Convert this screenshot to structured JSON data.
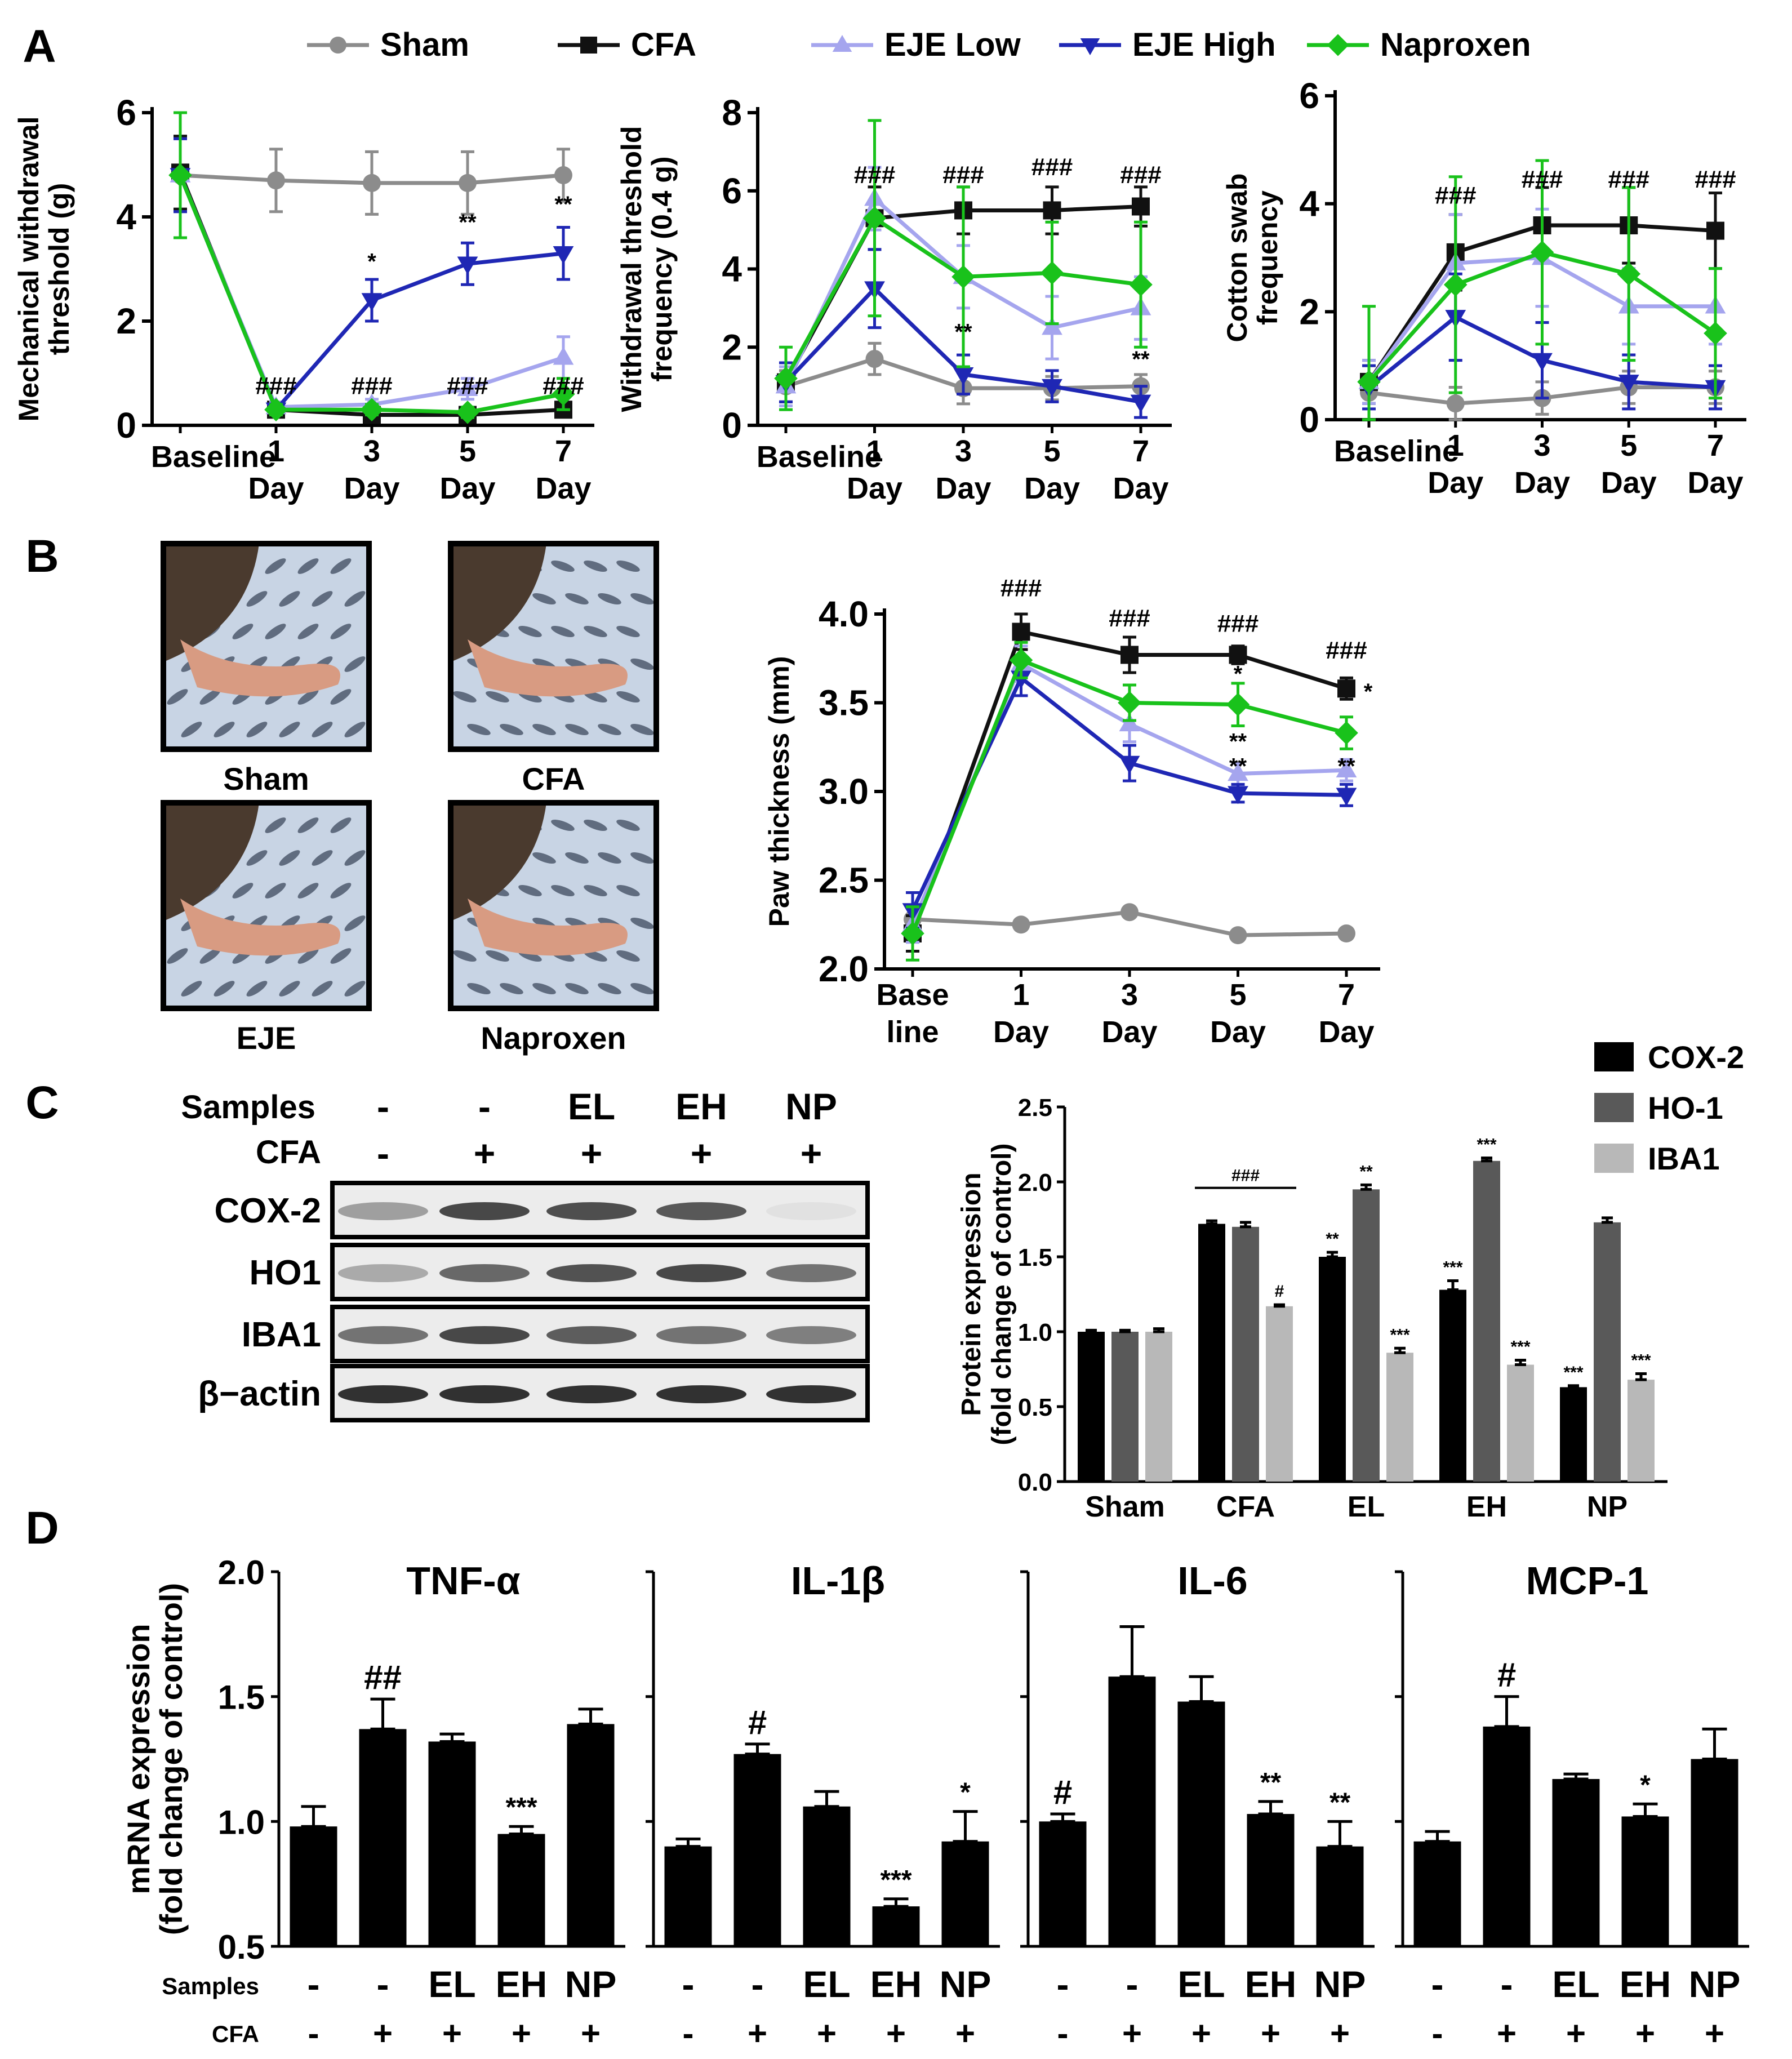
{
  "figure": {
    "panel_labels": [
      "A",
      "B",
      "C",
      "D"
    ],
    "legend_entries": [
      {
        "name": "Sham",
        "color": "#8c8c8c",
        "marker": "circle"
      },
      {
        "name": "CFA",
        "color": "#111111",
        "marker": "square"
      },
      {
        "name": "EJE Low",
        "color": "#a5a5ee",
        "marker": "triangle-up"
      },
      {
        "name": "EJE High",
        "color": "#1f27b4",
        "marker": "triangle-down"
      },
      {
        "name": "Naproxen",
        "color": "#19c21b",
        "marker": "diamond"
      }
    ],
    "photos": {
      "captions": [
        "Sham",
        "CFA",
        "EJE",
        "Naproxen"
      ],
      "colors": {
        "fur": "#4a3a2e",
        "paw": "#d89b82",
        "mat": "#c8d4e4",
        "spot": "#3d4a5e"
      }
    },
    "western_blot": {
      "row_labels": [
        "Samples",
        "CFA"
      ],
      "samples": [
        "-",
        "-",
        "EL",
        "EH",
        "NP"
      ],
      "cfa": [
        "-",
        "+",
        "+",
        "+",
        "+"
      ],
      "bands": [
        "COX-2",
        "HO1",
        "IBA1",
        "β−actin"
      ],
      "band_intensity": [
        [
          0.35,
          0.75,
          0.72,
          0.68,
          0.05
        ],
        [
          0.3,
          0.6,
          0.7,
          0.75,
          0.55
        ],
        [
          0.55,
          0.75,
          0.65,
          0.55,
          0.5
        ],
        [
          0.85,
          0.85,
          0.85,
          0.85,
          0.85
        ]
      ]
    }
  },
  "chart_data": [
    {
      "id": "mechanical",
      "type": "line",
      "ylabel_lines": [
        "Mechanical withdrawal",
        "threshold (g)"
      ],
      "xticks": [
        [
          "Baseline"
        ],
        [
          "1",
          "Day"
        ],
        [
          "3",
          "Day"
        ],
        [
          "5",
          "Day"
        ],
        [
          "7",
          "Day"
        ]
      ],
      "ylim": [
        0,
        6
      ],
      "yticks": [
        0,
        2,
        4,
        6
      ],
      "series": [
        {
          "name": "Sham",
          "values": [
            4.8,
            4.7,
            4.65,
            4.65,
            4.8
          ],
          "err": [
            0.7,
            0.6,
            0.6,
            0.6,
            0.5
          ]
        },
        {
          "name": "CFA",
          "values": [
            4.85,
            0.3,
            0.2,
            0.2,
            0.3
          ],
          "err": [
            0.7,
            0.1,
            0.1,
            0.1,
            0.1
          ]
        },
        {
          "name": "EJE Low",
          "values": [
            4.8,
            0.35,
            0.4,
            0.7,
            1.3
          ],
          "err": [
            0.7,
            0.1,
            0.1,
            0.2,
            0.4
          ]
        },
        {
          "name": "EJE High",
          "values": [
            4.8,
            0.3,
            2.4,
            3.1,
            3.3
          ],
          "err": [
            0.7,
            0.1,
            0.4,
            0.4,
            0.5
          ]
        },
        {
          "name": "Naproxen",
          "values": [
            4.8,
            0.3,
            0.3,
            0.25,
            0.6
          ],
          "err": [
            1.2,
            0.1,
            0.1,
            0.1,
            0.3
          ]
        }
      ],
      "annotations": [
        {
          "x": 1,
          "y": 0.6,
          "text": "###"
        },
        {
          "x": 2,
          "y": 0.6,
          "text": "###"
        },
        {
          "x": 3,
          "y": 0.6,
          "text": "###"
        },
        {
          "x": 4,
          "y": 0.6,
          "text": "###"
        },
        {
          "x": 2,
          "y": 3.0,
          "text": "*"
        },
        {
          "x": 3,
          "y": 3.75,
          "text": "**"
        },
        {
          "x": 4,
          "y": 4.1,
          "text": "**"
        }
      ]
    },
    {
      "id": "withdrawal",
      "type": "line",
      "ylabel_lines": [
        "Withdrawal threshold",
        "frequency (0.4 g)"
      ],
      "xticks": [
        [
          "Baseline"
        ],
        [
          "1",
          "Day"
        ],
        [
          "3",
          "Day"
        ],
        [
          "5",
          "Day"
        ],
        [
          "7",
          "Day"
        ]
      ],
      "ylim": [
        0,
        8
      ],
      "yticks": [
        0,
        2,
        4,
        6,
        8
      ],
      "series": [
        {
          "name": "Sham",
          "values": [
            1.0,
            1.7,
            0.95,
            0.95,
            1.0
          ],
          "err": [
            0.4,
            0.4,
            0.4,
            0.3,
            0.3
          ]
        },
        {
          "name": "CFA",
          "values": [
            1.1,
            5.3,
            5.5,
            5.5,
            5.6
          ],
          "err": [
            0.5,
            0.8,
            0.6,
            0.6,
            0.5
          ]
        },
        {
          "name": "EJE Low",
          "values": [
            1.0,
            5.8,
            3.8,
            2.5,
            3.0
          ],
          "err": [
            0.5,
            0.8,
            0.8,
            0.8,
            0.8
          ]
        },
        {
          "name": "EJE High",
          "values": [
            1.1,
            3.5,
            1.3,
            1.0,
            0.6
          ],
          "err": [
            0.5,
            1.0,
            0.5,
            0.4,
            0.4
          ]
        },
        {
          "name": "Naproxen",
          "values": [
            1.2,
            5.3,
            3.8,
            3.9,
            3.6
          ],
          "err": [
            0.8,
            2.5,
            2.3,
            1.3,
            1.6
          ]
        }
      ],
      "annotations": [
        {
          "x": 1,
          "y": 6.2,
          "text": "###"
        },
        {
          "x": 2,
          "y": 6.2,
          "text": "###"
        },
        {
          "x": 3,
          "y": 6.4,
          "text": "###"
        },
        {
          "x": 4,
          "y": 6.2,
          "text": "###"
        },
        {
          "x": 2,
          "y": 2.2,
          "text": "**"
        },
        {
          "x": 4,
          "y": 1.5,
          "text": "**"
        }
      ]
    },
    {
      "id": "cotton",
      "type": "line",
      "ylabel_lines": [
        "Cotton swab",
        "frequency"
      ],
      "xticks": [
        [
          "Baseline"
        ],
        [
          "1",
          "Day"
        ],
        [
          "3",
          "Day"
        ],
        [
          "5",
          "Day"
        ],
        [
          "7",
          "Day"
        ]
      ],
      "ylim": [
        0,
        6
      ],
      "yticks": [
        0,
        2,
        4,
        6
      ],
      "series": [
        {
          "name": "Sham",
          "values": [
            0.5,
            0.3,
            0.4,
            0.6,
            0.6
          ],
          "err": [
            0.5,
            0.3,
            0.3,
            0.3,
            0.3
          ]
        },
        {
          "name": "CFA",
          "values": [
            0.7,
            3.1,
            3.6,
            3.6,
            3.5
          ],
          "err": [
            0.4,
            0.7,
            0.7,
            0.7,
            0.7
          ]
        },
        {
          "name": "EJE Low",
          "values": [
            0.7,
            2.9,
            3.0,
            2.1,
            2.1
          ],
          "err": [
            0.4,
            0.9,
            0.9,
            0.7,
            0.7
          ]
        },
        {
          "name": "EJE High",
          "values": [
            0.6,
            1.9,
            1.1,
            0.7,
            0.6
          ],
          "err": [
            0.4,
            0.8,
            0.7,
            0.5,
            0.4
          ]
        },
        {
          "name": "Naproxen",
          "values": [
            0.7,
            2.5,
            3.1,
            2.7,
            1.6
          ],
          "err": [
            1.4,
            2.0,
            1.7,
            1.6,
            1.2
          ]
        }
      ],
      "annotations": [
        {
          "x": 1,
          "y": 4.0,
          "text": "###"
        },
        {
          "x": 2,
          "y": 4.3,
          "text": "###"
        },
        {
          "x": 3,
          "y": 4.3,
          "text": "###"
        },
        {
          "x": 4,
          "y": 4.3,
          "text": "###"
        }
      ]
    },
    {
      "id": "paw",
      "type": "line",
      "ylabel_lines": [
        "Paw thickness (mm)"
      ],
      "xticks": [
        [
          "Base",
          "line"
        ],
        [
          "1",
          "Day"
        ],
        [
          "3",
          "Day"
        ],
        [
          "5",
          "Day"
        ],
        [
          "7",
          "Day"
        ]
      ],
      "ylim": [
        2.0,
        4.0
      ],
      "yticks": [
        2.0,
        2.5,
        3.0,
        3.5,
        4.0
      ],
      "series": [
        {
          "name": "Sham",
          "values": [
            2.28,
            2.25,
            2.32,
            2.19,
            2.2
          ],
          "err": [
            0.02,
            0.02,
            0.02,
            0.02,
            0.02
          ]
        },
        {
          "name": "CFA",
          "values": [
            2.2,
            3.9,
            3.77,
            3.77,
            3.58
          ],
          "err": [
            0.1,
            0.1,
            0.1,
            0.05,
            0.06
          ]
        },
        {
          "name": "EJE Low",
          "values": [
            2.25,
            3.72,
            3.38,
            3.1,
            3.12
          ],
          "err": [
            0.1,
            0.1,
            0.1,
            0.06,
            0.06
          ]
        },
        {
          "name": "EJE High",
          "values": [
            2.33,
            3.64,
            3.16,
            2.99,
            2.98
          ],
          "err": [
            0.1,
            0.1,
            0.1,
            0.05,
            0.06
          ]
        },
        {
          "name": "Naproxen",
          "values": [
            2.2,
            3.74,
            3.5,
            3.49,
            3.33
          ],
          "err": [
            0.15,
            0.1,
            0.1,
            0.12,
            0.09
          ]
        }
      ],
      "annotations": [
        {
          "x": 1,
          "y": 4.1,
          "text": "###"
        },
        {
          "x": 2,
          "y": 3.93,
          "text": "###"
        },
        {
          "x": 3,
          "y": 3.9,
          "text": "###"
        },
        {
          "x": 4,
          "y": 3.75,
          "text": "###"
        },
        {
          "x": 3,
          "y": 3.62,
          "text": "*"
        },
        {
          "x": 4.2,
          "y": 3.52,
          "text": "*"
        },
        {
          "x": 3,
          "y": 3.24,
          "text": "**"
        },
        {
          "x": 3,
          "y": 3.1,
          "text": "**"
        },
        {
          "x": 4,
          "y": 3.1,
          "text": "**"
        }
      ]
    },
    {
      "id": "protein",
      "type": "bar",
      "ylabel_lines": [
        "Protein expression",
        "(fold change of control)"
      ],
      "categories": [
        "Sham",
        "CFA",
        "EL",
        "EH",
        "NP"
      ],
      "ylim": [
        0,
        2.5
      ],
      "yticks": [
        0.0,
        0.5,
        1.0,
        1.5,
        2.0,
        2.5
      ],
      "series": [
        {
          "name": "COX-2",
          "color": "#000000",
          "values": [
            1.0,
            1.72,
            1.5,
            1.28,
            0.63
          ],
          "err": [
            0.01,
            0.02,
            0.03,
            0.06,
            0.01
          ],
          "sig": [
            "",
            "",
            "**",
            "***",
            "***"
          ]
        },
        {
          "name": "HO-1",
          "color": "#595959",
          "values": [
            1.0,
            1.7,
            1.95,
            2.14,
            1.73
          ],
          "err": [
            0.01,
            0.03,
            0.03,
            0.02,
            0.03
          ],
          "sig": [
            "",
            "",
            "**",
            "***",
            ""
          ]
        },
        {
          "name": "IBA1",
          "color": "#b8b8b8",
          "values": [
            1.0,
            1.17,
            0.86,
            0.78,
            0.68
          ],
          "err": [
            0.02,
            0.01,
            0.03,
            0.03,
            0.04
          ],
          "sig": [
            "",
            "#",
            "***",
            "***",
            "***"
          ]
        }
      ],
      "bracket_label": "###"
    },
    {
      "id": "mrna",
      "type": "bar",
      "ylabel_lines": [
        "mRNA expression",
        "(fold change of control)"
      ],
      "row_labels": [
        "Samples",
        "CFA"
      ],
      "samples": [
        "-",
        "-",
        "EL",
        "EH",
        "NP"
      ],
      "cfa": [
        "-",
        "+",
        "+",
        "+",
        "+"
      ],
      "ylim": [
        0.5,
        2.0
      ],
      "yticks": [
        0.5,
        1.0,
        1.5,
        2.0
      ],
      "panels": [
        {
          "title": "TNF-α",
          "values": [
            0.98,
            1.37,
            1.32,
            0.95,
            1.39
          ],
          "err": [
            0.08,
            0.12,
            0.03,
            0.03,
            0.06
          ],
          "sig": [
            "",
            "##",
            "",
            "***",
            ""
          ]
        },
        {
          "title": "IL-1β",
          "values": [
            0.9,
            1.27,
            1.06,
            0.66,
            0.92
          ],
          "err": [
            0.03,
            0.04,
            0.06,
            0.03,
            0.12
          ],
          "sig": [
            "",
            "#",
            "",
            "***",
            "*"
          ]
        },
        {
          "title": "IL-6",
          "values": [
            1.0,
            1.58,
            1.48,
            1.03,
            0.9
          ],
          "err": [
            0.03,
            0.2,
            0.1,
            0.05,
            0.1
          ],
          "sig": [
            "#",
            "",
            "",
            "**",
            "**"
          ]
        },
        {
          "title": "MCP-1",
          "values": [
            0.92,
            1.38,
            1.17,
            1.02,
            1.25
          ],
          "err": [
            0.04,
            0.12,
            0.02,
            0.05,
            0.12
          ],
          "sig": [
            "",
            "#",
            "",
            "*",
            ""
          ]
        }
      ]
    }
  ]
}
